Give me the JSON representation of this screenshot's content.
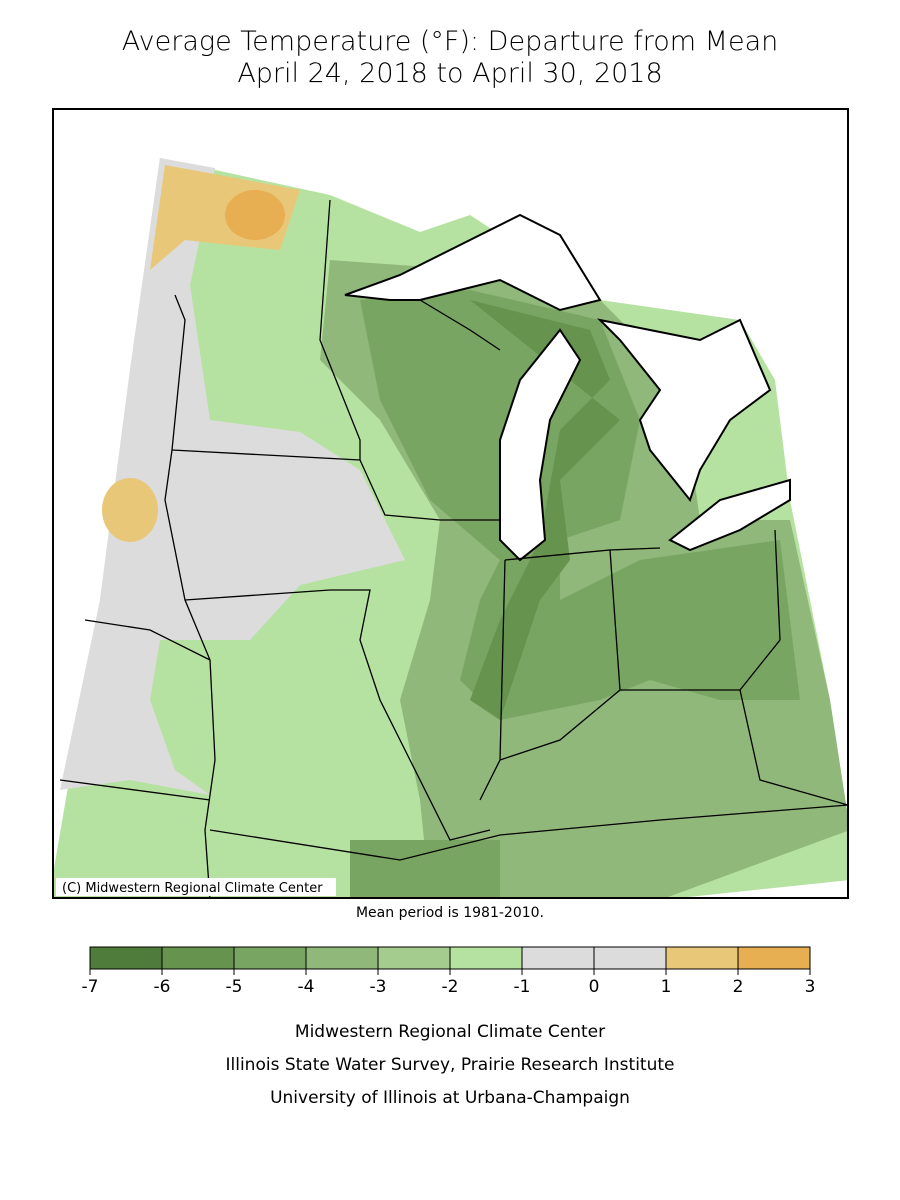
{
  "title": [
    "Average Temperature (°F): Departure from Mean",
    "April 24, 2018 to April 30, 2018"
  ],
  "copyright": "(C) Midwestern Regional Climate Center",
  "note": "Mean period is 1981-2010.",
  "legend": {
    "ticks": [
      -7,
      -6,
      -5,
      -4,
      -3,
      -2,
      -1,
      0,
      1,
      2,
      3
    ],
    "colors": [
      "#4f7c3a",
      "#66934e",
      "#79a562",
      "#8fb87a",
      "#a3cc8e",
      "#b6e2a1",
      "#dcdcdc",
      "#dcdcdc",
      "#e8c878",
      "#e8ae52"
    ]
  },
  "footer": [
    "Midwestern Regional Climate Center",
    "Illinois State Water Survey, Prairie Research Institute",
    "University of Illinois at Urbana-Champaign"
  ]
}
